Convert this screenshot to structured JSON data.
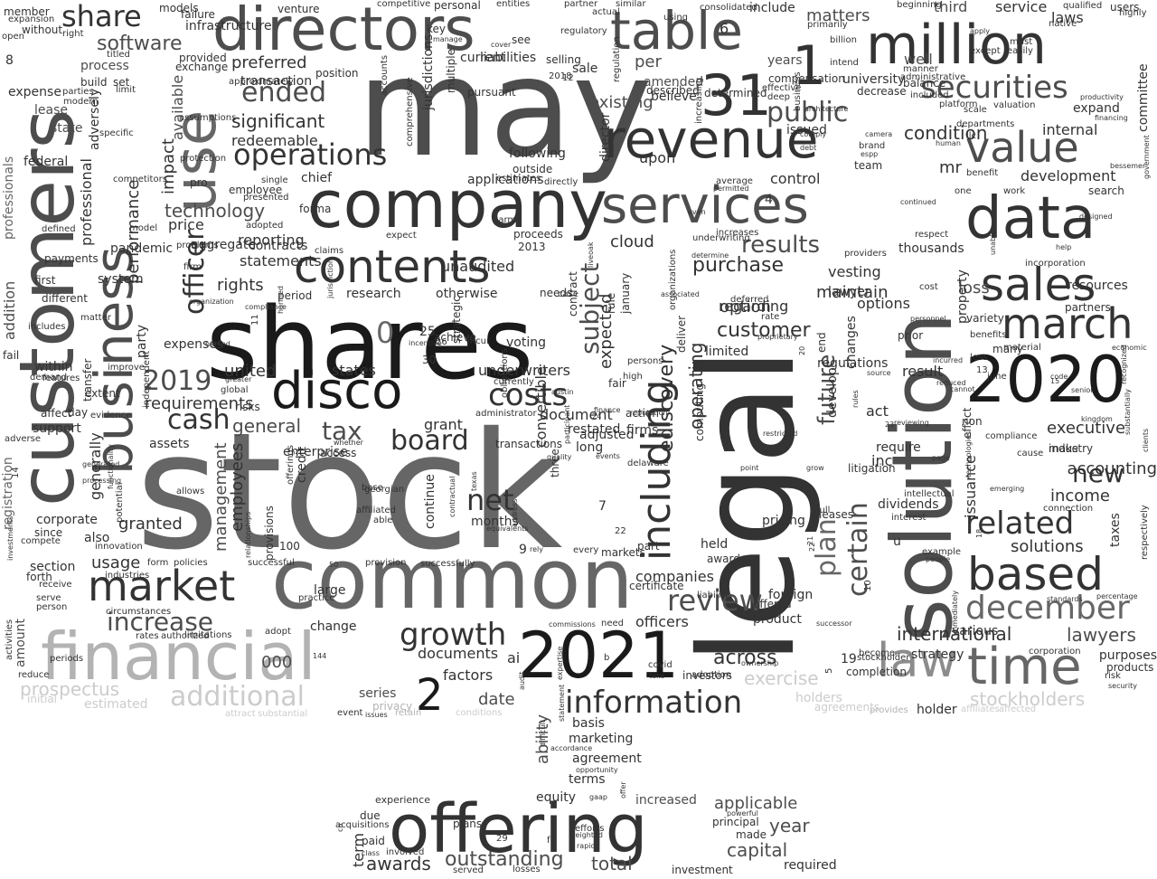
{
  "cloud": {
    "palette": {
      "darkest": "#1a1a1a",
      "dark": "#333333",
      "mid": "#4d4d4d",
      "gray": "#666666",
      "light": "#8c8c8c",
      "pale": "#b3b3b3",
      "faint": "#cccccc"
    },
    "words": [
      "stock",
      "customers",
      "may",
      "legal",
      "shares",
      "solution",
      "common",
      "offering",
      "directors",
      "company",
      "services",
      "million",
      "revenue",
      "data",
      "2021",
      "2020",
      "business",
      "use",
      "financial",
      "disco",
      "table",
      "time",
      "law",
      "contents",
      "sales",
      "march",
      "based",
      "including",
      "31",
      "market",
      "value",
      "securities",
      "december",
      "related",
      "information",
      "costs",
      "net",
      "review",
      "growth",
      "operations",
      "additional",
      "public",
      "plan",
      "certain",
      "increase",
      "ended",
      "share",
      "board",
      "cash",
      "tax",
      "new",
      "results",
      "customer",
      "software",
      "technology",
      "2019",
      "executive",
      "solutions",
      "income",
      "lawyers",
      "loss",
      "stockholders",
      "prospectus",
      "management",
      "exercise",
      "subject",
      "purchase",
      "future",
      "option",
      "officers",
      "capital",
      "outstanding",
      "awards",
      "total",
      "applicable",
      "year",
      "date",
      "factors",
      "documents",
      "ai",
      "2",
      "1",
      "0",
      "000",
      "terms",
      "agreement",
      "ability",
      "marketing",
      "basis",
      "equity",
      "increased",
      "experience",
      "due",
      "matters",
      "third",
      "service",
      "laws",
      "well",
      "years",
      "per",
      "existing",
      "amended",
      "believe",
      "current",
      "liabilities",
      "preferred",
      "significant",
      "redeemable",
      "process",
      "expense",
      "lease",
      "state",
      "federal",
      "professionals",
      "addition",
      "within",
      "support",
      "affect",
      "demand",
      "registration",
      "since",
      "section",
      "forth",
      "amount",
      "activities",
      "reduce",
      "initial",
      "estimated",
      "series",
      "privacy",
      "retain",
      "change",
      "product",
      "across",
      "investors",
      "adoption",
      "covid",
      "liability",
      "foreign",
      "offered",
      "certificate",
      "award",
      "held",
      "companies",
      "part",
      "firms",
      "action",
      "fair",
      "expected",
      "january",
      "rule",
      "document",
      "adjusted",
      "restated",
      "grant",
      "long",
      "transactions",
      "three",
      "convertible",
      "underwriters",
      "states",
      "united",
      "general",
      "requirements",
      "assets",
      "enterprise",
      "credit",
      "offerings",
      "continue",
      "months",
      "granted",
      "also",
      "usage",
      "generally",
      "corporate",
      "employees",
      "operating",
      "ediscovery",
      "cloud",
      "unaudited",
      "otherwise",
      "research",
      "period",
      "rights",
      "statements",
      "reporting",
      "price",
      "officer",
      "party",
      "expenses",
      "performance",
      "impact",
      "available",
      "infrastructure",
      "models",
      "venture",
      "competitive",
      "personal",
      "entities",
      "partner",
      "similar",
      "actual",
      "using",
      "consolidated",
      "include",
      "applications",
      "chief",
      "control",
      "following",
      "director",
      "upon",
      "issued",
      "university",
      "compensation",
      "effective",
      "development",
      "internal",
      "committee",
      "search",
      "work",
      "one",
      "condition",
      "mr",
      "team",
      "thousands",
      "respect",
      "providers",
      "incorporation",
      "resources",
      "partners",
      "many",
      "property",
      "prior",
      "options",
      "result",
      "act",
      "inc",
      "issuance",
      "effect",
      "non",
      "industry",
      "accounting",
      "taxes",
      "various",
      "purposes",
      "products",
      "risk",
      "security",
      "holder",
      "holders",
      "completion",
      "litigation",
      "develop",
      "changes",
      "leases",
      "dividends",
      "intellectual",
      "interest",
      "require",
      "u",
      "strategy",
      "international",
      "become",
      "10",
      "5",
      "19",
      "maintain",
      "regulations",
      "end",
      "pricing",
      "full",
      "lawyer",
      "vesting",
      "cost",
      "personnel",
      "regarding",
      "deferred",
      "limited",
      "deliver",
      "underwriting",
      "increases",
      "computing",
      "high",
      "persons",
      "rate",
      "30",
      "25",
      "achieve",
      "voting",
      "incur",
      "administrator",
      "obligations",
      "currently",
      "needs",
      "contract",
      "case",
      "expect",
      "proceeds",
      "2013",
      "contracts",
      "aggregate",
      "claims",
      "pandemic",
      "problems",
      "firm",
      "system",
      "different",
      "first",
      "payments",
      "defined",
      "model",
      "competitors",
      "adversely",
      "professional",
      "transfer",
      "evidence",
      "independent",
      "matter",
      "includes",
      "fail",
      "improve",
      "extent",
      "day",
      "adverse",
      "features",
      "8",
      "open",
      "without",
      "member",
      "expansion",
      "right",
      "titled",
      "build",
      "set",
      "limit",
      "parties",
      "modern",
      "specific",
      "assumptions",
      "provided",
      "exchange",
      "transaction",
      "position",
      "approximately",
      "protection",
      "employee",
      "presented",
      "adopted",
      "forma",
      "pro",
      "single",
      "estimates",
      "directly",
      "outside",
      "harm",
      "comprehensive",
      "jurisdictions",
      "multiple",
      "pursuant",
      "accounts",
      "selling",
      "sale",
      "key",
      "manage",
      "regulatory",
      "2018",
      "12",
      "failure",
      "see",
      "cover",
      "6",
      "determined",
      "described",
      "increasing",
      "regulation",
      "deep",
      "average",
      "permitted",
      "4",
      "even",
      "business",
      "primarily",
      "intend",
      "billion",
      "decrease",
      "balance",
      "manner",
      "beginning",
      "administrative",
      "included",
      "camera",
      "brand",
      "espp",
      "departments",
      "platform",
      "valuation",
      "scale",
      "human",
      "continued",
      "benefit",
      "llc",
      "except",
      "apply",
      "must",
      "easily",
      "native",
      "qualified",
      "users",
      "highly",
      "productivity",
      "expand",
      "financing",
      "bessemer",
      "designed",
      "government",
      "help",
      "unable",
      "economic",
      "recognized",
      "benefits",
      "variety",
      "less",
      "material",
      "incurred",
      "reduced",
      "cannot",
      "june",
      "code",
      "13",
      "15",
      "kingdom",
      "senior",
      "compliance",
      "cause",
      "make",
      "connection",
      "emerging",
      "technologies",
      "page",
      "standards",
      "percentage",
      "clients",
      "substantially",
      "respectively",
      "example",
      "people",
      "18",
      "immediately",
      "affiliates",
      "affected",
      "provides",
      "agreements",
      "corporation",
      "stockholder",
      "rules",
      "23",
      "reviewing",
      "source",
      "grow",
      "point",
      "restricted",
      "16",
      "14",
      "compete",
      "serve",
      "receive",
      "person",
      "investments",
      "industries",
      "innovation",
      "policies",
      "form",
      "successful",
      "provisions",
      "relationships",
      "100",
      "able",
      "affiliated",
      "georgian",
      "base",
      "texas",
      "address",
      "equivalents",
      "contractual",
      "quality",
      "participant",
      "events",
      "successfully",
      "markets",
      "every",
      "delaware",
      "22",
      "7",
      "9",
      "rely",
      "provision",
      "50",
      "large",
      "practice",
      "adopt",
      "144",
      "circumstances",
      "authorized",
      "limitations",
      "rates",
      "periods",
      "attract",
      "substantial",
      "conditions",
      "event",
      "issues",
      "audit",
      "expertise",
      "commissions",
      "need",
      "take",
      "ownership",
      "b",
      "accordance",
      "opportunity",
      "difficult",
      "statement",
      "gaap",
      "offer",
      "plans",
      "efforts",
      "weighted",
      "rapid",
      "class",
      "involved",
      "acquisitions",
      "co",
      "paid",
      "term",
      "served",
      "losses",
      "29",
      "f",
      "investment",
      "required",
      "made",
      "principal",
      "powerful",
      "whether",
      "access",
      "generated",
      "processing",
      "allows",
      "potential",
      "functionality",
      "global",
      "greater",
      "risks",
      "named",
      "organization",
      "11",
      "harmed",
      "jurisdiction",
      "incentive",
      "strategic",
      "26",
      "24",
      "austin",
      "finance",
      "reputation",
      "liveoak",
      "determine",
      "associated",
      "organizations",
      "proprietary",
      "20",
      "21",
      "22",
      "successor",
      "architecture",
      "comply",
      "debt",
      "compliance"
    ]
  }
}
